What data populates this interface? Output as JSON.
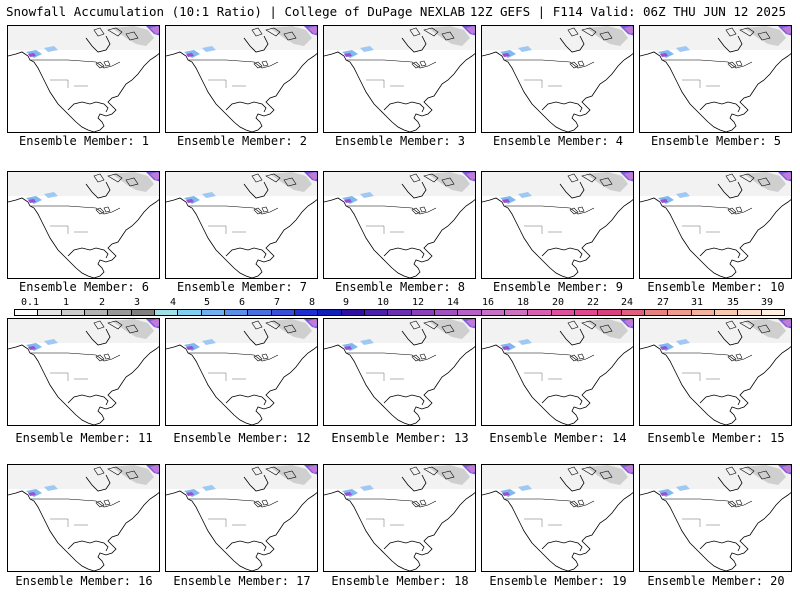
{
  "header": {
    "left": "Snowfall Accumulation (10:1 Ratio) | College of DuPage NEXLAB",
    "right": "12Z GEFS | F114 Valid: 06Z THU JUN 12 2025"
  },
  "members": [
    {
      "label": "Ensemble Member: 1"
    },
    {
      "label": "Ensemble Member: 2"
    },
    {
      "label": "Ensemble Member: 3"
    },
    {
      "label": "Ensemble Member: 4"
    },
    {
      "label": "Ensemble Member: 5"
    },
    {
      "label": "Ensemble Member: 6"
    },
    {
      "label": "Ensemble Member: 7"
    },
    {
      "label": "Ensemble Member: 8"
    },
    {
      "label": "Ensemble Member: 9"
    },
    {
      "label": "Ensemble Member: 10"
    },
    {
      "label": "Ensemble Member: 11"
    },
    {
      "label": "Ensemble Member: 12"
    },
    {
      "label": "Ensemble Member: 13"
    },
    {
      "label": "Ensemble Member: 14"
    },
    {
      "label": "Ensemble Member: 15"
    },
    {
      "label": "Ensemble Member: 16"
    },
    {
      "label": "Ensemble Member: 17"
    },
    {
      "label": "Ensemble Member: 18"
    },
    {
      "label": "Ensemble Member: 19"
    },
    {
      "label": "Ensemble Member: 20"
    }
  ],
  "colorbar": {
    "ticks": [
      "0.1",
      "1",
      "2",
      "3",
      "4",
      "5",
      "6",
      "7",
      "8",
      "9",
      "10",
      "12",
      "14",
      "16",
      "18",
      "20",
      "22",
      "24",
      "27",
      "31",
      "35",
      "39"
    ],
    "colors": [
      "#ffffff",
      "#e6e6e6",
      "#cccccc",
      "#b3b3b3",
      "#999999",
      "#808080",
      "#9fe0e8",
      "#7fd0f0",
      "#70b0f0",
      "#5a90e8",
      "#4a70e0",
      "#3a50d8",
      "#2030d0",
      "#1020b8",
      "#3010a0",
      "#4a20a8",
      "#6a30b0",
      "#8a40b8",
      "#a050c0",
      "#b860c8",
      "#c870c8",
      "#d070c0",
      "#d860b0",
      "#e050a0",
      "#e04890",
      "#d84080",
      "#e06080",
      "#e88080",
      "#f09a90",
      "#f4b0a0",
      "#f8c8b0",
      "#fcdcc8",
      "#fff0e0"
    ]
  }
}
